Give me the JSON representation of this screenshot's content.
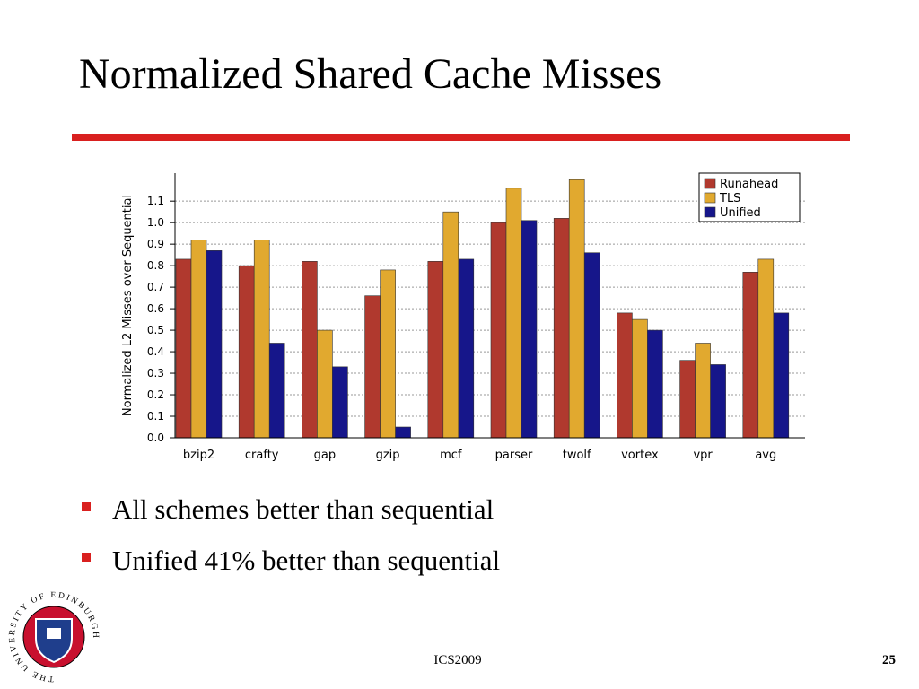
{
  "slide": {
    "title": "Normalized Shared Cache Misses",
    "bullets": [
      "All schemes better than sequential",
      "Unified 41% better than sequential"
    ],
    "footer": "ICS2009",
    "page_number": "25",
    "logo": {
      "text": "THE UNIVERSITY OF EDINBURGH"
    }
  },
  "chart_data": {
    "type": "bar",
    "y_label": "Normalized L2 Misses over Sequential",
    "categories": [
      "bzip2",
      "crafty",
      "gap",
      "gzip",
      "mcf",
      "parser",
      "twolf",
      "vortex",
      "vpr",
      "avg"
    ],
    "series": [
      {
        "name": "Runahead",
        "color": "#b0392e",
        "values": [
          0.83,
          0.8,
          0.82,
          0.66,
          0.82,
          1.0,
          1.02,
          0.58,
          0.36,
          0.77
        ]
      },
      {
        "name": "TLS",
        "color": "#e1a92f",
        "values": [
          0.92,
          0.92,
          0.5,
          0.78,
          1.05,
          1.16,
          1.2,
          0.55,
          0.44,
          0.83
        ]
      },
      {
        "name": "Unified",
        "color": "#16168a",
        "values": [
          0.87,
          0.44,
          0.33,
          0.05,
          0.83,
          1.01,
          0.86,
          0.5,
          0.34,
          0.58
        ]
      }
    ],
    "ylim": [
      0,
      1.23
    ],
    "yticks": [
      {
        "value": 0,
        "label": "0.0"
      },
      0.1,
      0.2,
      0.3,
      0.4,
      0.5,
      0.6,
      0.7,
      0.8,
      0.9,
      {
        "value": 1,
        "label": "1.0"
      },
      1.1
    ],
    "grid": true,
    "legend": "top-right"
  }
}
